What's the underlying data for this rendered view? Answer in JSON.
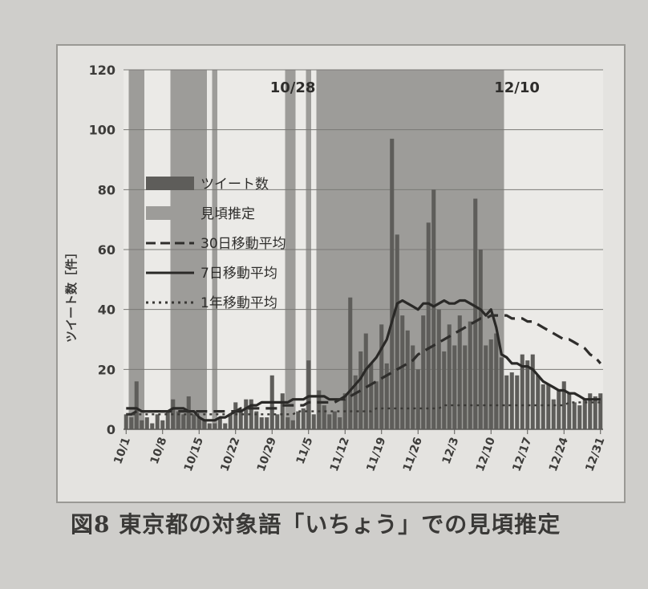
{
  "caption": "図8 東京都の対象語「いちょう」での見頃推定",
  "chart_data": {
    "type": "bar",
    "ylabel": "ツイート数［件］",
    "ylim": [
      0,
      120
    ],
    "yticks": [
      0,
      20,
      40,
      60,
      80,
      100,
      120
    ],
    "x_dates": [
      "10/1",
      "10/2",
      "10/3",
      "10/4",
      "10/5",
      "10/6",
      "10/7",
      "10/8",
      "10/9",
      "10/10",
      "10/11",
      "10/12",
      "10/13",
      "10/14",
      "10/15",
      "10/16",
      "10/17",
      "10/18",
      "10/19",
      "10/20",
      "10/21",
      "10/22",
      "10/23",
      "10/24",
      "10/25",
      "10/26",
      "10/27",
      "10/28",
      "10/29",
      "10/30",
      "10/31",
      "11/1",
      "11/2",
      "11/3",
      "11/4",
      "11/5",
      "11/6",
      "11/7",
      "11/8",
      "11/9",
      "11/10",
      "11/11",
      "11/12",
      "11/13",
      "11/14",
      "11/15",
      "11/16",
      "11/17",
      "11/18",
      "11/19",
      "11/20",
      "11/21",
      "11/22",
      "11/23",
      "11/24",
      "11/25",
      "11/26",
      "11/27",
      "11/28",
      "11/29",
      "11/30",
      "12/1",
      "12/2",
      "12/3",
      "12/4",
      "12/5",
      "12/6",
      "12/7",
      "12/8",
      "12/9",
      "12/10",
      "12/11",
      "12/12",
      "12/13",
      "12/14",
      "12/15",
      "12/16",
      "12/17",
      "12/18",
      "12/19",
      "12/20",
      "12/21",
      "12/22",
      "12/23",
      "12/24",
      "12/25",
      "12/26",
      "12/27",
      "12/28",
      "12/29",
      "12/30",
      "12/31"
    ],
    "xtick_labels": [
      "10/1",
      "10/8",
      "10/15",
      "10/22",
      "10/29",
      "11/5",
      "11/12",
      "11/19",
      "11/26",
      "12/3",
      "12/10",
      "12/17",
      "12/24",
      "12/31"
    ],
    "annotations": [
      {
        "text": "10/28",
        "at": "10/28"
      },
      {
        "text": "12/10",
        "at": "12/10"
      }
    ],
    "shaded_periods": [
      {
        "from": "10/2",
        "to": "10/4"
      },
      {
        "from": "10/10",
        "to": "10/16"
      },
      {
        "from": "10/18",
        "to": "10/18"
      },
      {
        "from": "11/1",
        "to": "11/2"
      },
      {
        "from": "11/5",
        "to": "11/5"
      },
      {
        "from": "11/7",
        "to": "12/12"
      }
    ],
    "legend": {
      "placement": "center-left",
      "entries": [
        {
          "label": "ツイート数",
          "kind": "bar",
          "color": "#5e5d5a"
        },
        {
          "label": "見頃推定",
          "kind": "bar",
          "color": "#9d9c99"
        },
        {
          "label": "30日移動平均",
          "kind": "line-dashed",
          "color": "#2f2e2c"
        },
        {
          "label": "7日移動平均",
          "kind": "line-solid",
          "color": "#2a2927"
        },
        {
          "label": "1年移動平均",
          "kind": "line-dotted",
          "color": "#3a3936"
        }
      ]
    },
    "series": [
      {
        "name": "ツイート数",
        "values": [
          5,
          4,
          16,
          3,
          4,
          2,
          5,
          3,
          6,
          10,
          6,
          5,
          11,
          5,
          4,
          3,
          2,
          2,
          4,
          2,
          5,
          9,
          6,
          10,
          10,
          6,
          4,
          4,
          18,
          5,
          12,
          4,
          3,
          6,
          7,
          23,
          5,
          13,
          8,
          5,
          6,
          4,
          12,
          44,
          18,
          26,
          32,
          22,
          16,
          35,
          22,
          97,
          65,
          38,
          33,
          28,
          20,
          38,
          69,
          80,
          40,
          26,
          35,
          28,
          38,
          28,
          36,
          77,
          60,
          28,
          30,
          32,
          24,
          18,
          19,
          18,
          25,
          23,
          25,
          18,
          15,
          15,
          10,
          13,
          16,
          12,
          9,
          8,
          10,
          12,
          11,
          12
        ]
      },
      {
        "name": "7日移動平均",
        "values": [
          7,
          7,
          7,
          6,
          6,
          6,
          6,
          6,
          6,
          7,
          7,
          7,
          6,
          6,
          4,
          3,
          3,
          3,
          4,
          4,
          5,
          6,
          6,
          7,
          8,
          8,
          9,
          9,
          9,
          9,
          9,
          9,
          10,
          10,
          10,
          11,
          11,
          11,
          11,
          10,
          10,
          10,
          11,
          13,
          15,
          17,
          20,
          22,
          24,
          27,
          30,
          36,
          42,
          43,
          42,
          41,
          40,
          42,
          42,
          41,
          42,
          43,
          42,
          42,
          43,
          43,
          42,
          41,
          40,
          38,
          40,
          34,
          25,
          24,
          22,
          22,
          21,
          21,
          20,
          18,
          16,
          15,
          14,
          13,
          13,
          12,
          12,
          11,
          10,
          10,
          10,
          10
        ]
      },
      {
        "name": "30日移動平均",
        "values": [
          5,
          5,
          6,
          6,
          6,
          6,
          6,
          6,
          6,
          6,
          6,
          6,
          6,
          6,
          6,
          6,
          6,
          6,
          6,
          6,
          6,
          6,
          7,
          7,
          7,
          7,
          7,
          7,
          7,
          7,
          8,
          8,
          8,
          8,
          8,
          9,
          9,
          9,
          9,
          9,
          9,
          10,
          10,
          11,
          12,
          13,
          14,
          15,
          16,
          17,
          18,
          19,
          20,
          21,
          22,
          23,
          25,
          26,
          27,
          28,
          29,
          30,
          31,
          32,
          33,
          34,
          35,
          36,
          37,
          37,
          38,
          38,
          38,
          38,
          37,
          37,
          37,
          36,
          36,
          35,
          34,
          33,
          32,
          31,
          30,
          30,
          29,
          28,
          27,
          25,
          24,
          22
        ]
      },
      {
        "name": "1年移動平均",
        "values": [
          5,
          5,
          5,
          5,
          5,
          5,
          5,
          5,
          5,
          5,
          5,
          5,
          5,
          5,
          5,
          5,
          5,
          5,
          5,
          5,
          5,
          5,
          5,
          5,
          5,
          5,
          5,
          5,
          5,
          5,
          5,
          5,
          5,
          6,
          6,
          6,
          6,
          6,
          6,
          6,
          6,
          6,
          6,
          6,
          6,
          6,
          6,
          6,
          7,
          7,
          7,
          7,
          7,
          7,
          7,
          7,
          7,
          7,
          7,
          7,
          7,
          8,
          8,
          8,
          8,
          8,
          8,
          8,
          8,
          8,
          8,
          8,
          8,
          8,
          8,
          8,
          8,
          8,
          8,
          8,
          8,
          8,
          8,
          8,
          8,
          9,
          9,
          9,
          9,
          9,
          9,
          9
        ]
      }
    ],
    "grid": "horizontal"
  }
}
